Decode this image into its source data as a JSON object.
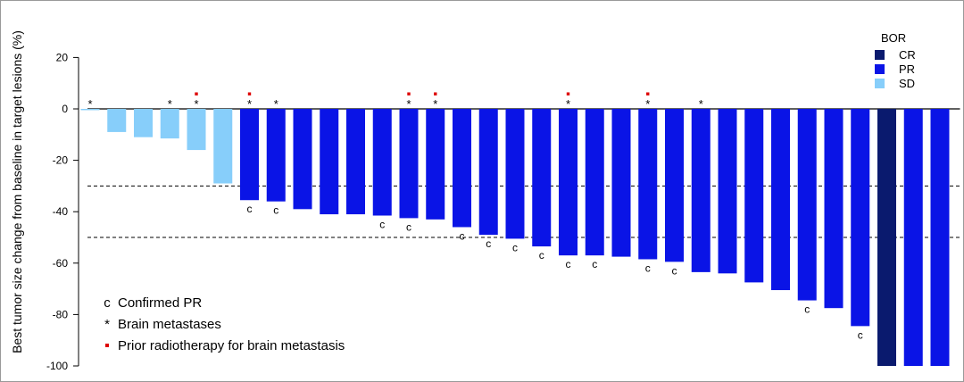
{
  "chart_data": {
    "type": "bar",
    "title": "",
    "xlabel": "",
    "ylabel": "Best tumor size change from baseline in target lesions (%)",
    "ylim": [
      -100,
      20
    ],
    "yticks": [
      20,
      0,
      -20,
      -40,
      -60,
      -80,
      -100
    ],
    "reference_lines": [
      -30,
      -50
    ],
    "grid": false,
    "legend": {
      "title": "BOR",
      "position": "top-right",
      "entries": [
        {
          "label": "CR",
          "color": "#0a1a6e"
        },
        {
          "label": "PR",
          "color": "#0a14e6"
        },
        {
          "label": "SD",
          "color": "#87cefa"
        }
      ]
    },
    "annotation_key": [
      {
        "symbol": "c",
        "label": "Confirmed PR"
      },
      {
        "symbol": "*",
        "label": "Brain metastases"
      },
      {
        "symbol": "▪",
        "label": "Prior radiotherapy for brain metastasis",
        "color": "#dd0000"
      }
    ],
    "series": [
      {
        "name": "BOR",
        "values": [
          -0.5,
          -9,
          -11,
          -11.5,
          -16,
          -29,
          -35.5,
          -36,
          -39,
          -41,
          -41,
          -41.5,
          -42.5,
          -43,
          -46,
          -49,
          -50.5,
          -53.5,
          -57,
          -57,
          -57.5,
          -58.5,
          -59.5,
          -63.5,
          -64,
          -67.5,
          -70.5,
          -74.5,
          -77.5,
          -84.5,
          -100,
          -100,
          -100
        ],
        "bor": [
          "SD",
          "SD",
          "SD",
          "SD",
          "SD",
          "SD",
          "PR",
          "PR",
          "PR",
          "PR",
          "PR",
          "PR",
          "PR",
          "PR",
          "PR",
          "PR",
          "PR",
          "PR",
          "PR",
          "PR",
          "PR",
          "PR",
          "PR",
          "PR",
          "PR",
          "PR",
          "PR",
          "PR",
          "PR",
          "PR",
          "CR",
          "PR",
          "PR"
        ],
        "confirmed_pr": [
          false,
          false,
          false,
          false,
          false,
          false,
          true,
          true,
          false,
          false,
          false,
          true,
          true,
          false,
          true,
          true,
          true,
          true,
          true,
          true,
          false,
          true,
          true,
          false,
          false,
          false,
          false,
          true,
          false,
          true,
          false,
          false,
          false
        ],
        "brain_metastases": [
          true,
          false,
          false,
          true,
          true,
          false,
          true,
          true,
          false,
          false,
          false,
          false,
          true,
          true,
          false,
          false,
          false,
          false,
          true,
          false,
          false,
          true,
          false,
          true,
          false,
          false,
          false,
          false,
          false,
          false,
          false,
          false,
          false
        ],
        "prior_radiotherapy": [
          false,
          false,
          false,
          false,
          true,
          false,
          true,
          false,
          false,
          false,
          false,
          false,
          true,
          true,
          false,
          false,
          false,
          false,
          true,
          false,
          false,
          true,
          false,
          false,
          false,
          false,
          false,
          false,
          false,
          false,
          false,
          false,
          false
        ]
      }
    ]
  }
}
